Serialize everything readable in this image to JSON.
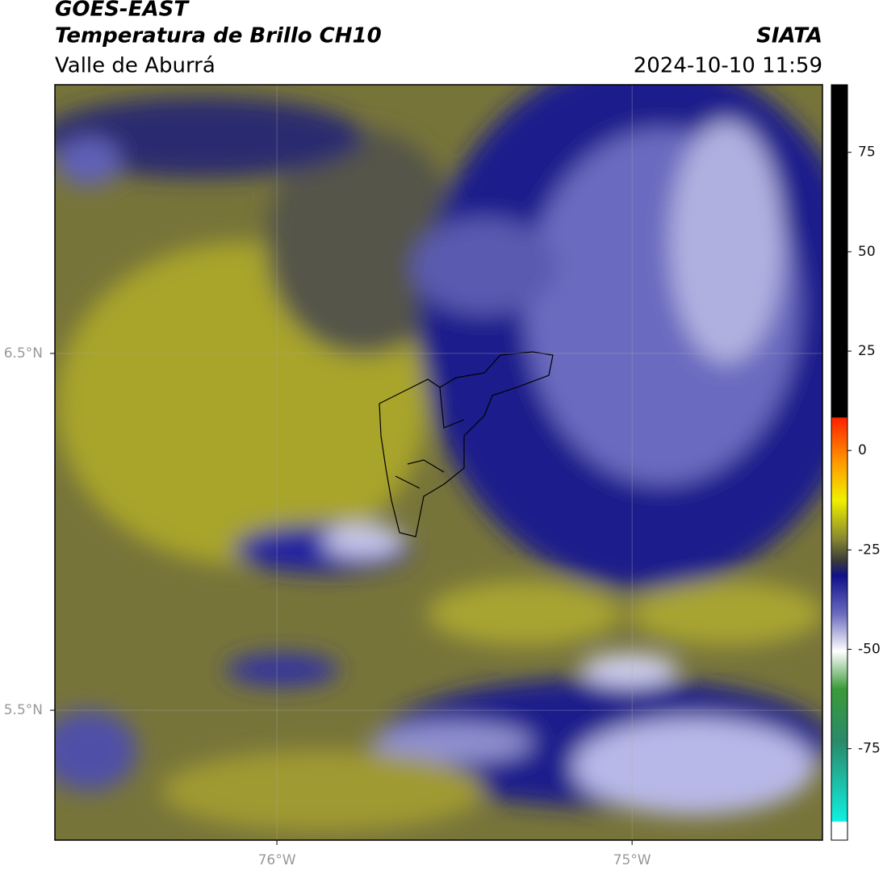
{
  "header": {
    "title": "GOES-EAST",
    "subtitle": "Temperatura de Brillo CH10",
    "region": "Valle de Aburrá",
    "source": "SIATA",
    "datetime": "2024-10-10 11:59"
  },
  "map": {
    "xlim": [
      -76.625,
      -74.464
    ],
    "ylim": [
      5.136,
      7.253
    ],
    "xticks": [
      {
        "value": -76,
        "label": "76°W"
      },
      {
        "value": -75,
        "label": "75°W"
      }
    ],
    "yticks": [
      {
        "value": 5.5,
        "label": "5.5°N"
      },
      {
        "value": 6.5,
        "label": "6.5°N"
      }
    ],
    "grid": true
  },
  "colorbar": {
    "lim": [
      -98,
      92
    ],
    "ticks": [
      75,
      50,
      25,
      0,
      -25,
      -50,
      -75
    ]
  }
}
